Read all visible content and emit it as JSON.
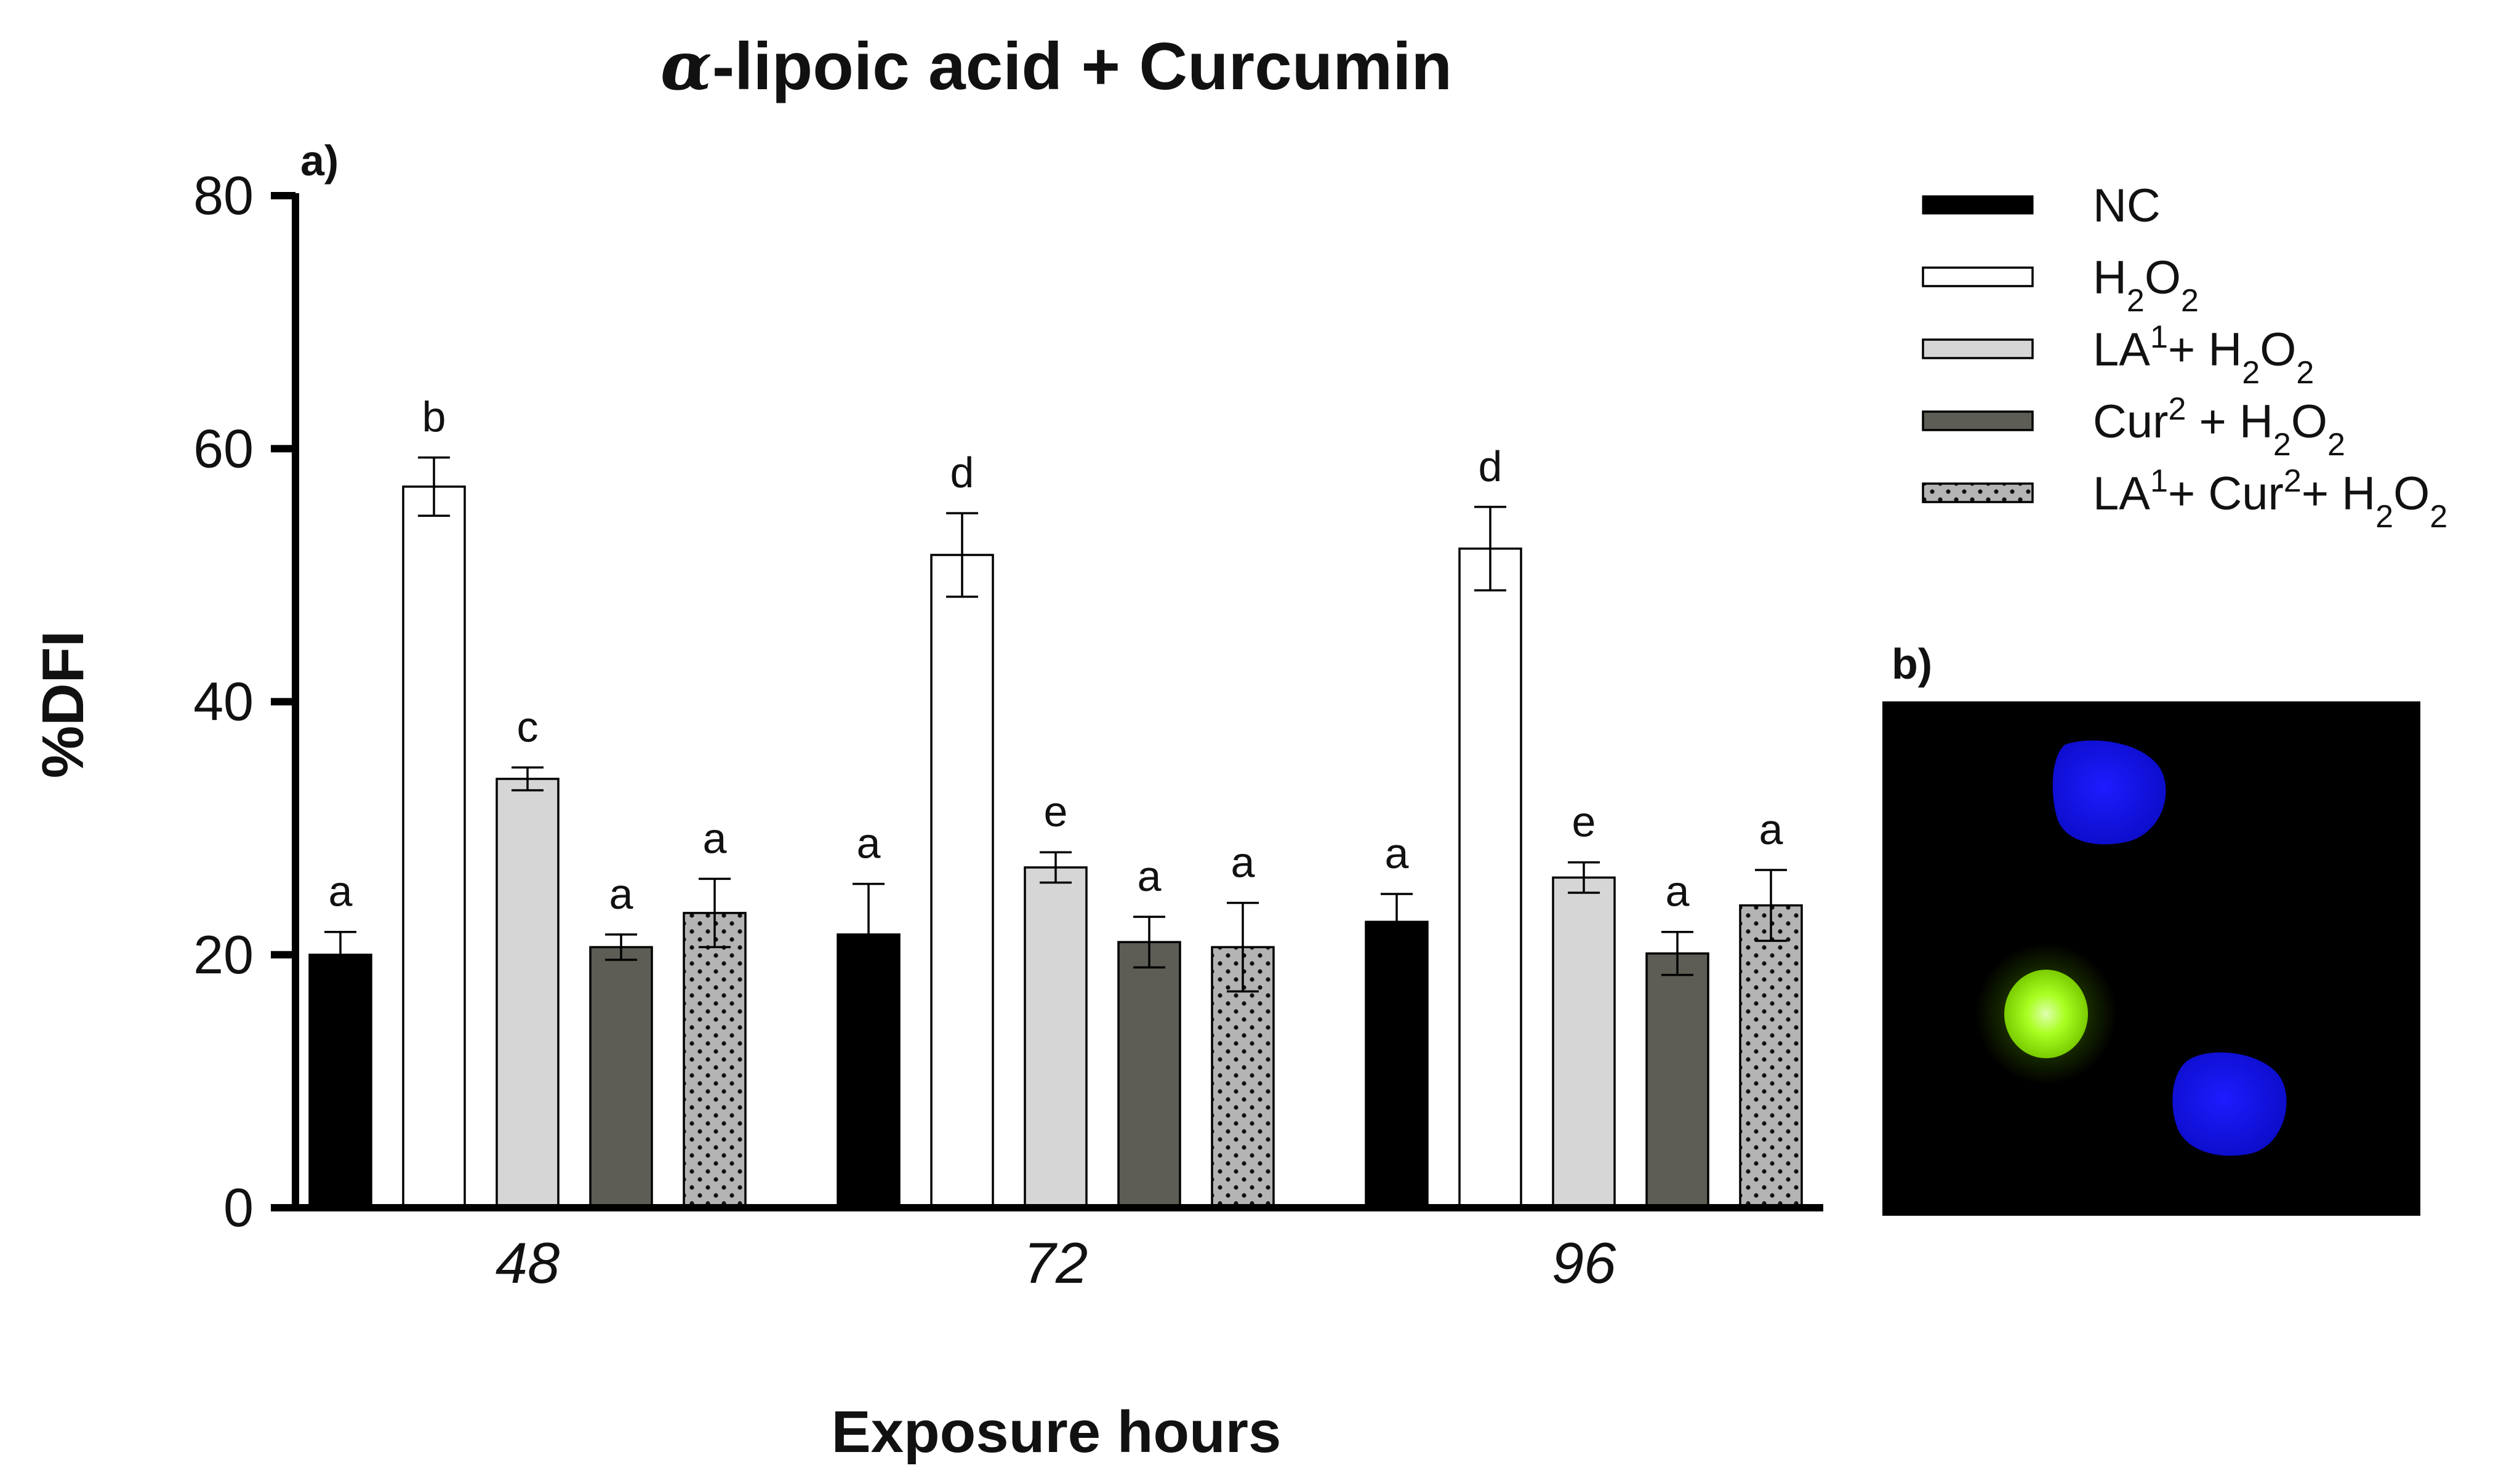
{
  "title": {
    "greek": "α",
    "text": "-lipoic acid + Curcumin"
  },
  "panel_labels": {
    "a": "a)",
    "b": "b)"
  },
  "colors": {
    "NC": "#000000",
    "H2O2": "#ffffff",
    "LA_H2O2": "#d6d6d6",
    "Cur_H2O2": "#5d5d55",
    "LA_Cur_H2O2": "#b4b4b4",
    "micrograph_bg": "#000000",
    "nucleus_blue": "#1010ee",
    "nucleus_green": "#aaff22"
  },
  "chart_data": {
    "type": "bar",
    "title": "α-lipoic acid + Curcumin",
    "xlabel": "Exposure hours",
    "ylabel": "%DFI",
    "ylim": [
      0,
      80
    ],
    "yticks": [
      0,
      20,
      40,
      60,
      80
    ],
    "categories": [
      "48",
      "72",
      "96"
    ],
    "legend_position": "top-right",
    "grid": false,
    "series": [
      {
        "key": "NC",
        "name": "NC",
        "legend": {
          "main": "NC"
        },
        "fill": "#000000",
        "pattern": "solid",
        "values": [
          20.0,
          21.6,
          22.6
        ],
        "errors": [
          1.8,
          4.0,
          2.2
        ],
        "letters": [
          "a",
          "a",
          "a"
        ]
      },
      {
        "key": "H2O2",
        "name": "H2O2",
        "legend": {
          "p1": "H",
          "s1": "2",
          "p2": "O",
          "s2": "2"
        },
        "fill": "#ffffff",
        "pattern": "solid",
        "values": [
          57.0,
          51.6,
          52.1
        ],
        "errors": [
          2.3,
          3.3,
          3.3
        ],
        "letters": [
          "b",
          "d",
          "d"
        ]
      },
      {
        "key": "LA_H2O2",
        "name": "LA1+ H2O2",
        "legend": {
          "p1": "LA",
          "sup1": "1",
          "p2": "+ H",
          "s1": "2",
          "p3": "O",
          "s2": "2"
        },
        "fill": "#d6d6d6",
        "pattern": "solid",
        "values": [
          33.9,
          26.9,
          26.1
        ],
        "errors": [
          0.9,
          1.2,
          1.2
        ],
        "letters": [
          "c",
          "e",
          "e"
        ]
      },
      {
        "key": "Cur_H2O2",
        "name": "Cur2 + H2O2",
        "legend": {
          "p1": "Cur",
          "sup1": "2",
          "p2": " + H",
          "s1": "2",
          "p3": "O",
          "s2": "2"
        },
        "fill": "#5d5d55",
        "pattern": "solid",
        "values": [
          20.6,
          21.0,
          20.1
        ],
        "errors": [
          1.0,
          2.0,
          1.7
        ],
        "letters": [
          "a",
          "a",
          "a"
        ]
      },
      {
        "key": "LA_Cur_H2O2",
        "name": "LA1+ Cur2+ H2O2",
        "legend": {
          "p1": "LA",
          "sup1": "1",
          "p2": "+ Cur",
          "sup2": "2",
          "p3": "+ H",
          "s1": "2",
          "p4": "O",
          "s2": "2"
        },
        "fill": "#b4b4b4",
        "pattern": "dots",
        "values": [
          23.3,
          20.6,
          23.9
        ],
        "errors": [
          2.7,
          3.5,
          2.8
        ],
        "letters": [
          "a",
          "a",
          "a"
        ]
      }
    ]
  }
}
